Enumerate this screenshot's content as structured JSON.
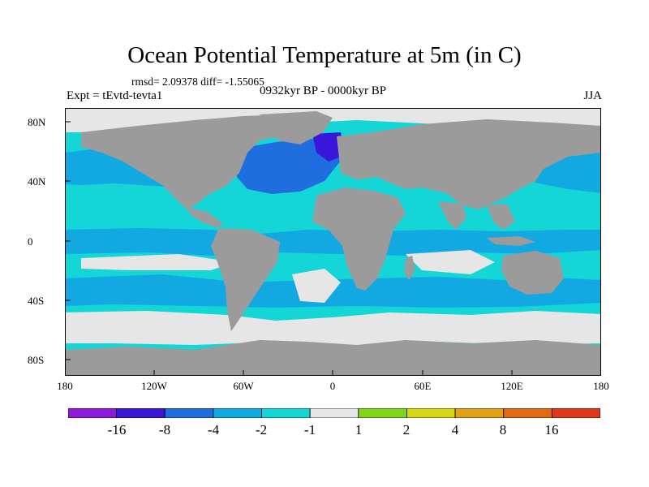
{
  "title": "Ocean Potential Temperature at 5m (in C)",
  "stats": "rmsd= 2.09378 diff= -1.55065",
  "experiment": "Expt = tEvtd-tevta1",
  "period": "0932kyr BP - 0000kyr BP",
  "season": "JJA",
  "y_labels": [
    "80N",
    "40N",
    "0",
    "40S",
    "80S"
  ],
  "x_labels": [
    "180",
    "120W",
    "60W",
    "0",
    "60E",
    "120E",
    "180"
  ],
  "colorbar": {
    "labels": [
      "-16",
      "-8",
      "-4",
      "-2",
      "-1",
      "1",
      "2",
      "4",
      "8",
      "16"
    ],
    "colors": [
      "#8b1ad9",
      "#3a16d8",
      "#1f6ee0",
      "#12a9e3",
      "#14d6d6",
      "#e6e6e6",
      "#7fd61a",
      "#d6d616",
      "#e0a018",
      "#e06a14",
      "#e0361a"
    ]
  },
  "map_colors": {
    "land": "#9b9b9b",
    "neutral": "#e6e6e6",
    "cyan": "#14d6d6",
    "light_blue": "#12a9e3",
    "blue": "#1f6ee0",
    "dark_blue": "#3a16d8"
  }
}
